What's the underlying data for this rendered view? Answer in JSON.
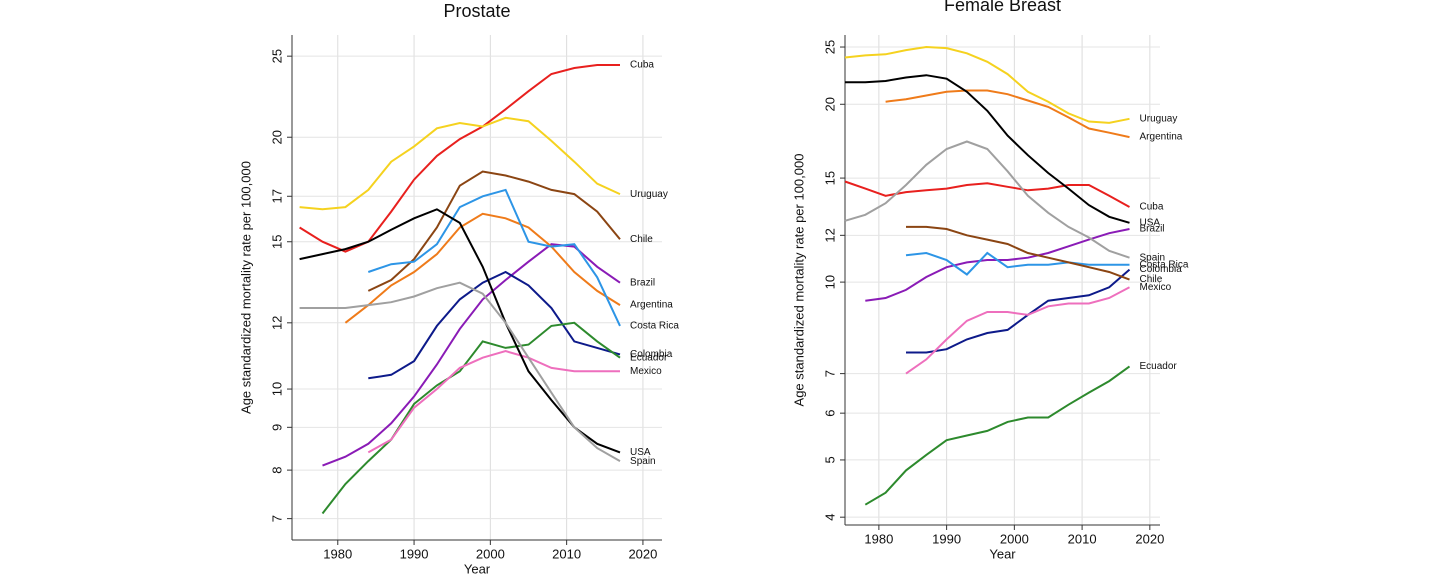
{
  "chart_data": [
    {
      "type": "line",
      "title": "Prostate",
      "xlabel": "Year",
      "ylabel": "Age standardized mortality rate per 100,000",
      "log_scale": true,
      "grid": true,
      "xlim": [
        1974,
        2022.5
      ],
      "xticks": [
        1980,
        1990,
        2000,
        2010,
        2020
      ],
      "ylim": [
        6.6,
        26.5
      ],
      "yticks": [
        7,
        8,
        9,
        10,
        12,
        15,
        17,
        20,
        25
      ],
      "x": [
        1975,
        1978,
        1981,
        1984,
        1987,
        1990,
        1993,
        1996,
        1999,
        2002,
        2005,
        2008,
        2011,
        2014,
        2017
      ],
      "series": [
        {
          "name": "Cuba",
          "color": "#e8201e",
          "values": [
            15.6,
            15.0,
            14.6,
            15.0,
            16.3,
            17.8,
            19.0,
            19.9,
            20.6,
            21.6,
            22.7,
            23.8,
            24.2,
            24.4,
            24.4
          ]
        },
        {
          "name": "Uruguay",
          "color": "#f5d21f",
          "values": [
            16.5,
            16.4,
            16.5,
            17.3,
            18.7,
            19.5,
            20.5,
            20.8,
            20.6,
            21.1,
            20.9,
            19.8,
            18.7,
            17.6,
            17.1
          ]
        },
        {
          "name": "Chile",
          "color": "#8b4513",
          "values": [
            null,
            null,
            null,
            13.1,
            13.5,
            14.3,
            15.6,
            17.5,
            18.2,
            18.0,
            17.7,
            17.3,
            17.1,
            16.3,
            15.1
          ]
        },
        {
          "name": "Brazil",
          "color": "#8a1bb6",
          "values": [
            null,
            8.1,
            8.3,
            8.6,
            9.1,
            9.8,
            10.7,
            11.8,
            12.8,
            13.5,
            14.2,
            14.9,
            14.8,
            14.0,
            13.4
          ]
        },
        {
          "name": "Argentina",
          "color": "#ef7b1a",
          "values": [
            null,
            null,
            12.0,
            12.6,
            13.3,
            13.8,
            14.5,
            15.6,
            16.2,
            16.0,
            15.6,
            14.8,
            13.8,
            13.1,
            12.6
          ]
        },
        {
          "name": "Costa Rica",
          "color": "#2d95e6",
          "values": [
            null,
            null,
            null,
            13.8,
            14.1,
            14.2,
            14.9,
            16.5,
            17.0,
            17.3,
            15.0,
            14.8,
            14.9,
            13.6,
            11.9
          ]
        },
        {
          "name": "Colombia",
          "color": "#0d1a8a",
          "values": [
            null,
            null,
            null,
            10.3,
            10.4,
            10.8,
            11.9,
            12.8,
            13.4,
            13.8,
            13.3,
            12.5,
            11.4,
            11.2,
            11.0
          ]
        },
        {
          "name": "Ecuador",
          "color": "#2d8a2d",
          "values": [
            null,
            7.1,
            7.7,
            8.2,
            8.7,
            9.6,
            10.1,
            10.5,
            11.4,
            11.2,
            11.3,
            11.9,
            12.0,
            11.4,
            10.9
          ]
        },
        {
          "name": "Mexico",
          "color": "#ee6fbd",
          "values": [
            null,
            null,
            null,
            8.4,
            8.7,
            9.5,
            10.0,
            10.6,
            10.9,
            11.1,
            10.9,
            10.6,
            10.5,
            10.5,
            10.5
          ]
        },
        {
          "name": "USA",
          "color": "#000000",
          "values": [
            14.3,
            14.5,
            14.7,
            15.0,
            15.5,
            16.0,
            16.4,
            15.8,
            14.0,
            12.0,
            10.5,
            9.7,
            9.0,
            8.6,
            8.4
          ]
        },
        {
          "name": "Spain",
          "color": "#a0a0a0",
          "values": [
            12.5,
            12.5,
            12.5,
            12.6,
            12.7,
            12.9,
            13.2,
            13.4,
            13.0,
            12.0,
            10.9,
            9.9,
            9.0,
            8.5,
            8.2
          ]
        }
      ]
    },
    {
      "type": "line",
      "title": "Female Breast",
      "xlabel": "Year",
      "ylabel": "Age standardized mortality rate per 100,000",
      "log_scale": true,
      "grid": true,
      "xlim": [
        1975,
        2021.5
      ],
      "xticks": [
        1980,
        1990,
        2000,
        2010,
        2020
      ],
      "ylim": [
        3.88,
        26.2
      ],
      "yticks": [
        4,
        5,
        6,
        7,
        10,
        12,
        15,
        20,
        25
      ],
      "x": [
        1975,
        1978,
        1981,
        1984,
        1987,
        1990,
        1993,
        1996,
        1999,
        2002,
        2005,
        2008,
        2011,
        2014,
        2017
      ],
      "series": [
        {
          "name": "Uruguay",
          "color": "#f5d21f",
          "values": [
            24.0,
            24.2,
            24.3,
            24.7,
            25.0,
            24.9,
            24.4,
            23.6,
            22.5,
            21.0,
            20.2,
            19.3,
            18.7,
            18.6,
            18.9
          ]
        },
        {
          "name": "Argentina",
          "color": "#ef7b1a",
          "values": [
            null,
            null,
            20.2,
            20.4,
            20.7,
            21.0,
            21.1,
            21.1,
            20.8,
            20.3,
            19.8,
            19.0,
            18.2,
            17.9,
            17.6
          ]
        },
        {
          "name": "Cuba",
          "color": "#e8201e",
          "values": [
            14.8,
            14.4,
            14.0,
            14.2,
            14.3,
            14.4,
            14.6,
            14.7,
            14.5,
            14.3,
            14.4,
            14.6,
            14.6,
            14.0,
            13.4
          ]
        },
        {
          "name": "USA",
          "color": "#000000",
          "values": [
            21.8,
            21.8,
            21.9,
            22.2,
            22.4,
            22.1,
            21.0,
            19.5,
            17.7,
            16.4,
            15.3,
            14.4,
            13.5,
            12.9,
            12.6
          ]
        },
        {
          "name": "Brazil",
          "color": "#8a1bb6",
          "values": [
            null,
            9.3,
            9.4,
            9.7,
            10.2,
            10.6,
            10.8,
            10.9,
            10.9,
            11.0,
            11.2,
            11.5,
            11.8,
            12.1,
            12.3
          ]
        },
        {
          "name": "Spain",
          "color": "#a0a0a0",
          "values": [
            12.7,
            13.0,
            13.6,
            14.6,
            15.8,
            16.8,
            17.3,
            16.8,
            15.4,
            14.0,
            13.1,
            12.4,
            11.9,
            11.3,
            11.0
          ]
        },
        {
          "name": "Colombia",
          "color": "#0d1a8a",
          "values": [
            null,
            null,
            null,
            7.6,
            7.6,
            7.7,
            8.0,
            8.2,
            8.3,
            8.8,
            9.3,
            9.4,
            9.5,
            9.8,
            10.5
          ]
        },
        {
          "name": "Costa Rica",
          "color": "#2d95e6",
          "values": [
            null,
            null,
            null,
            11.1,
            11.2,
            10.9,
            10.3,
            11.2,
            10.6,
            10.7,
            10.7,
            10.8,
            10.7,
            10.7,
            10.7
          ]
        },
        {
          "name": "Chile",
          "color": "#8b4513",
          "values": [
            null,
            null,
            null,
            12.4,
            12.4,
            12.3,
            12.0,
            11.8,
            11.6,
            11.2,
            11.0,
            10.8,
            10.6,
            10.4,
            10.1
          ]
        },
        {
          "name": "Mexico",
          "color": "#ee6fbd",
          "values": [
            null,
            null,
            null,
            7.0,
            7.4,
            8.0,
            8.6,
            8.9,
            8.9,
            8.8,
            9.1,
            9.2,
            9.2,
            9.4,
            9.8
          ]
        },
        {
          "name": "Ecuador",
          "color": "#2d8a2d",
          "values": [
            null,
            4.2,
            4.4,
            4.8,
            5.1,
            5.4,
            5.5,
            5.6,
            5.8,
            5.9,
            5.9,
            6.2,
            6.5,
            6.8,
            7.2
          ]
        }
      ]
    }
  ]
}
